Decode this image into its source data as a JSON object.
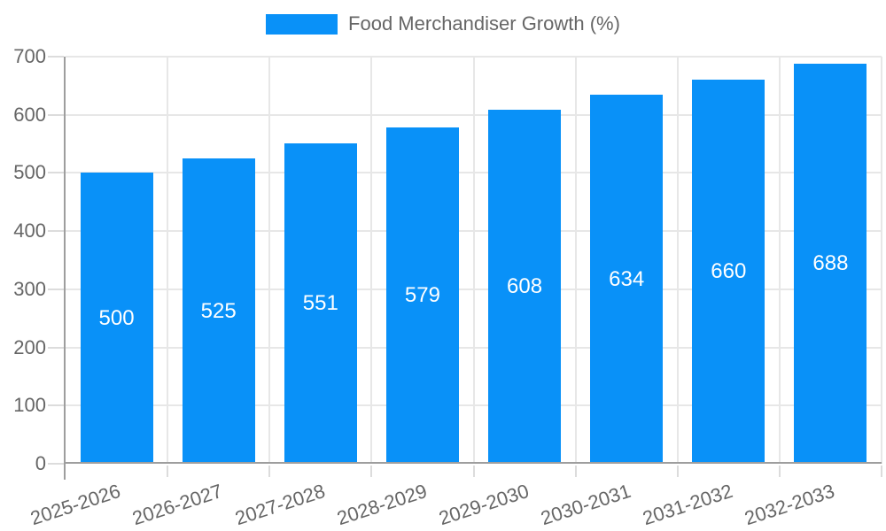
{
  "colors": {
    "bar": "#0991f8",
    "axis": "#9e9e9e",
    "grid": "#e7e7e7",
    "tick": "#dcdcdc",
    "text": "#666666",
    "bar_label": "#ffffff",
    "background": "#ffffff"
  },
  "chart_data": {
    "type": "bar",
    "title": "",
    "legend": "Food Merchandiser Growth (%)",
    "legend_position": "top-center",
    "categories": [
      "2025-2026",
      "2026-2027",
      "2027-2028",
      "2028-2029",
      "2029-2030",
      "2030-2031",
      "2031-2032",
      "2032-2033"
    ],
    "values": [
      500,
      525,
      551,
      579,
      608,
      634,
      660,
      688
    ],
    "xlabel": "",
    "ylabel": "",
    "ylim": [
      0,
      700
    ],
    "yticks": [
      0,
      100,
      200,
      300,
      400,
      500,
      600,
      700
    ],
    "grid": true,
    "bar_labels": true,
    "bar_label_position": "middle",
    "x_label_rotation_deg": -18
  }
}
